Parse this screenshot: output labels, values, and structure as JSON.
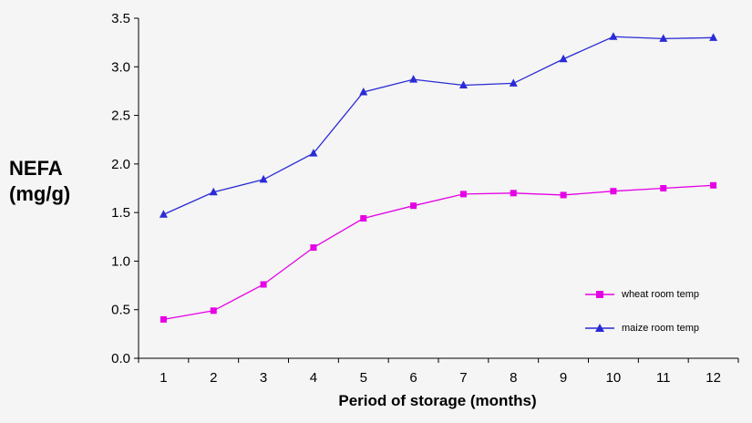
{
  "chart_data": {
    "type": "line",
    "ylabel_lines": [
      "NEFA",
      "(mg/g)"
    ],
    "xlabel": "Period of storage (months)",
    "categories": [
      "1",
      "2",
      "3",
      "4",
      "5",
      "6",
      "7",
      "8",
      "9",
      "10",
      "11",
      "12"
    ],
    "ylim": [
      0,
      3.5
    ],
    "yticks": [
      "0.0",
      "0.5",
      "1.0",
      "1.5",
      "2.0",
      "2.5",
      "3.0",
      "3.5"
    ],
    "grid": false,
    "legend_position": "bottom-right",
    "series": [
      {
        "name": "wheat room temp",
        "color": "#e600e6",
        "marker": "square",
        "values": [
          0.4,
          0.49,
          0.76,
          1.14,
          1.44,
          1.57,
          1.69,
          1.7,
          1.68,
          1.72,
          1.75,
          1.78
        ]
      },
      {
        "name": "maize room temp",
        "color": "#2a2ad6",
        "marker": "triangle",
        "values": [
          1.48,
          1.71,
          1.84,
          2.11,
          2.74,
          2.87,
          2.81,
          2.83,
          3.08,
          3.31,
          3.29,
          3.3
        ]
      }
    ]
  }
}
